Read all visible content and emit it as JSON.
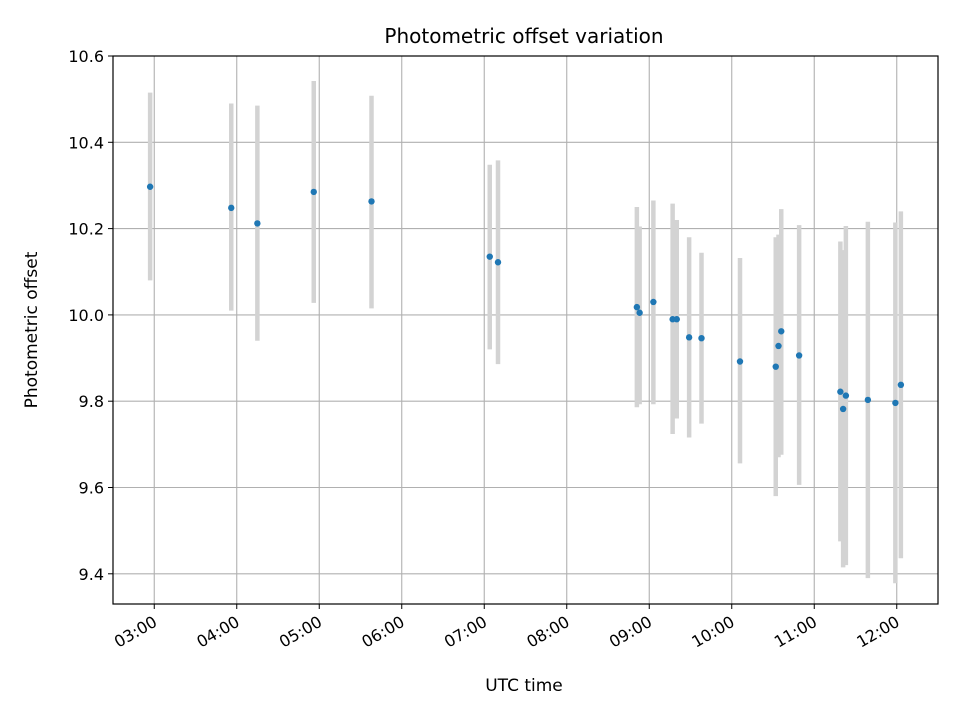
{
  "chart_data": {
    "type": "scatter",
    "title": "Photometric offset variation",
    "xlabel": "UTC time",
    "ylabel": "Photometric offset",
    "xlim": [
      "02:30",
      "12:30"
    ],
    "ylim": [
      9.33,
      10.6
    ],
    "grid": true,
    "x_ticks": [
      "03:00",
      "04:00",
      "05:00",
      "06:00",
      "07:00",
      "08:00",
      "09:00",
      "10:00",
      "11:00",
      "12:00"
    ],
    "y_ticks": [
      "9.4",
      "9.6",
      "9.8",
      "10.0",
      "10.2",
      "10.4",
      "10.6"
    ],
    "colors": {
      "point": "#1f77b4",
      "errorbar": "#d3d3d3",
      "grid": "#b0b0b0"
    },
    "series": [
      {
        "points": [
          {
            "x": "02:57",
            "y": 10.297,
            "low": 10.08,
            "high": 10.515
          },
          {
            "x": "03:56",
            "y": 10.248,
            "low": 10.01,
            "high": 10.49
          },
          {
            "x": "04:15",
            "y": 10.212,
            "low": 9.94,
            "high": 10.485
          },
          {
            "x": "04:56",
            "y": 10.285,
            "low": 10.028,
            "high": 10.542
          },
          {
            "x": "05:38",
            "y": 10.263,
            "low": 10.015,
            "high": 10.508
          },
          {
            "x": "07:04",
            "y": 10.135,
            "low": 9.92,
            "high": 10.348
          },
          {
            "x": "07:10",
            "y": 10.122,
            "low": 9.886,
            "high": 10.358
          },
          {
            "x": "08:51",
            "y": 10.018,
            "low": 9.786,
            "high": 10.25
          },
          {
            "x": "08:53",
            "y": 10.005,
            "low": 9.793,
            "high": 10.205
          },
          {
            "x": "09:03",
            "y": 10.03,
            "low": 9.793,
            "high": 10.265
          },
          {
            "x": "09:17",
            "y": 9.99,
            "low": 9.724,
            "high": 10.258
          },
          {
            "x": "09:20",
            "y": 9.99,
            "low": 9.76,
            "high": 10.22
          },
          {
            "x": "09:29",
            "y": 9.948,
            "low": 9.716,
            "high": 10.18
          },
          {
            "x": "09:38",
            "y": 9.946,
            "low": 9.748,
            "high": 10.144
          },
          {
            "x": "10:06",
            "y": 9.892,
            "low": 9.656,
            "high": 10.132
          },
          {
            "x": "10:32",
            "y": 9.88,
            "low": 9.58,
            "high": 10.18
          },
          {
            "x": "10:34",
            "y": 9.928,
            "low": 9.67,
            "high": 10.186
          },
          {
            "x": "10:36",
            "y": 9.962,
            "low": 9.676,
            "high": 10.245
          },
          {
            "x": "10:49",
            "y": 9.906,
            "low": 9.606,
            "high": 10.208
          },
          {
            "x": "11:19",
            "y": 9.822,
            "low": 9.475,
            "high": 10.17
          },
          {
            "x": "11:21",
            "y": 9.782,
            "low": 9.415,
            "high": 10.15
          },
          {
            "x": "11:23",
            "y": 9.813,
            "low": 9.42,
            "high": 10.206
          },
          {
            "x": "11:39",
            "y": 9.803,
            "low": 9.39,
            "high": 10.216
          },
          {
            "x": "11:59",
            "y": 9.796,
            "low": 9.378,
            "high": 10.214
          },
          {
            "x": "12:03",
            "y": 9.838,
            "low": 9.436,
            "high": 10.24
          }
        ]
      }
    ]
  }
}
